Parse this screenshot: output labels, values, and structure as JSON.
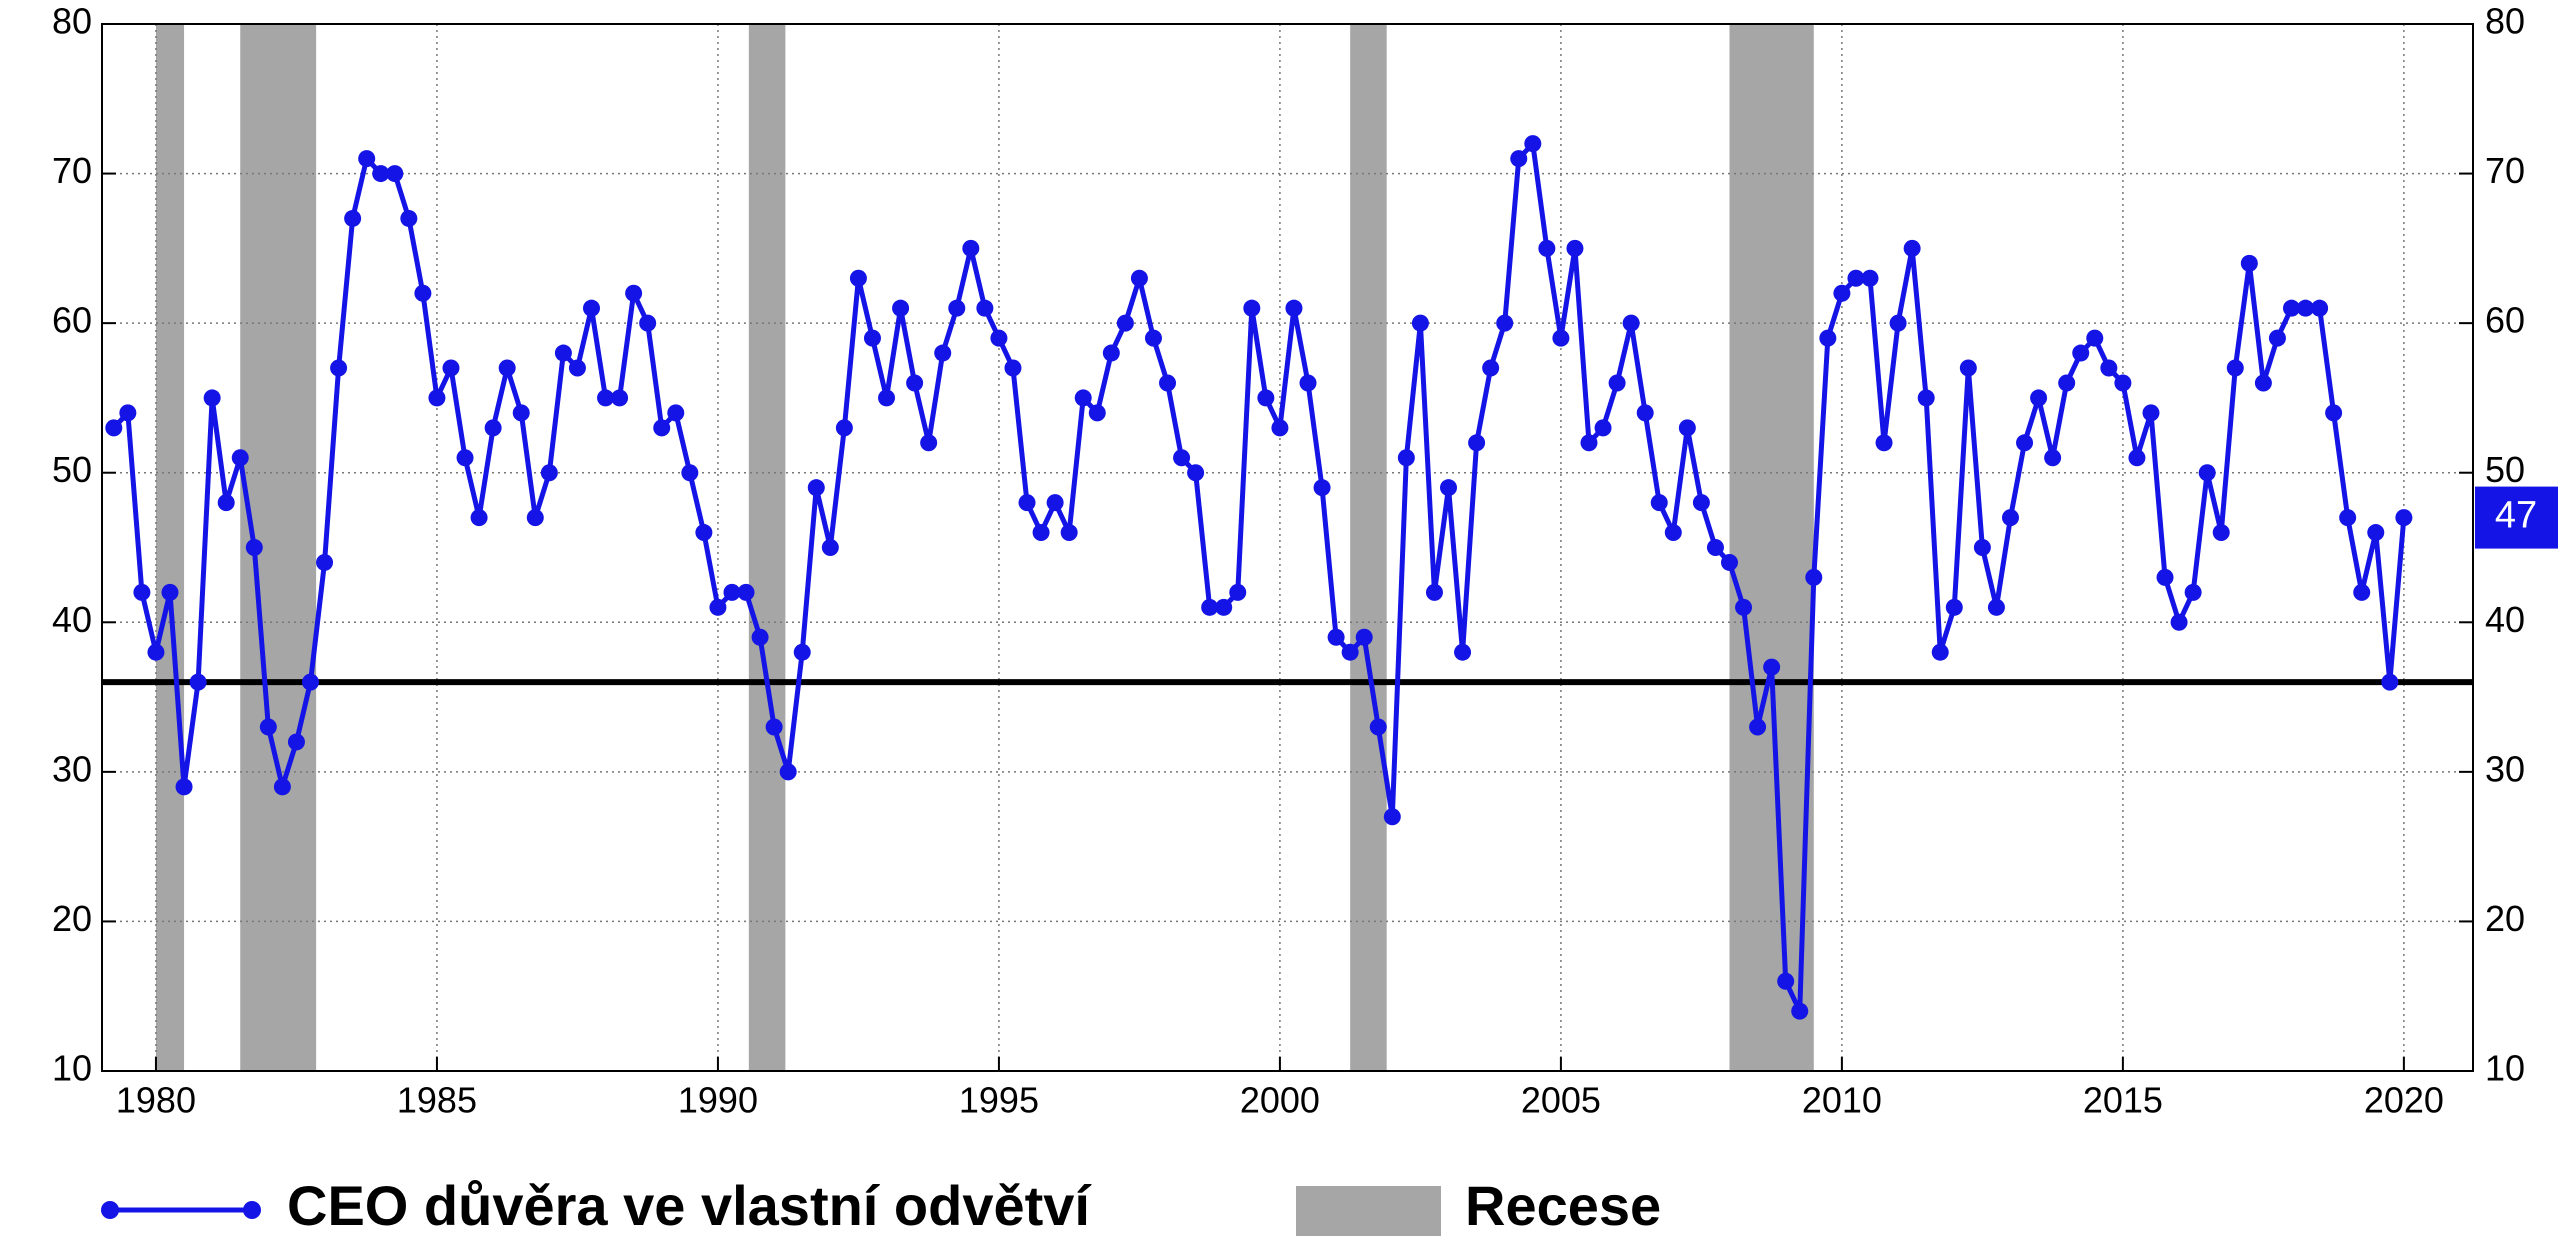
{
  "chart_data": {
    "type": "line",
    "x": [
      1979.25,
      1979.5,
      1979.75,
      1980,
      1980.25,
      1980.5,
      1980.75,
      1981,
      1981.25,
      1981.5,
      1981.75,
      1982,
      1982.25,
      1982.5,
      1982.75,
      1983,
      1983.25,
      1983.5,
      1983.75,
      1984,
      1984.25,
      1984.5,
      1984.75,
      1985,
      1985.25,
      1985.5,
      1985.75,
      1986,
      1986.25,
      1986.5,
      1986.75,
      1987,
      1987.25,
      1987.5,
      1987.75,
      1988,
      1988.25,
      1988.5,
      1988.75,
      1989,
      1989.25,
      1989.5,
      1989.75,
      1990,
      1990.25,
      1990.5,
      1990.75,
      1991,
      1991.25,
      1991.5,
      1991.75,
      1992,
      1992.25,
      1992.5,
      1992.75,
      1993,
      1993.25,
      1993.5,
      1993.75,
      1994,
      1994.25,
      1994.5,
      1994.75,
      1995,
      1995.25,
      1995.5,
      1995.75,
      1996,
      1996.25,
      1996.5,
      1996.75,
      1997,
      1997.25,
      1997.5,
      1997.75,
      1998,
      1998.25,
      1998.5,
      1998.75,
      1999,
      1999.25,
      1999.5,
      1999.75,
      2000,
      2000.25,
      2000.5,
      2000.75,
      2001,
      2001.25,
      2001.5,
      2001.75,
      2002,
      2002.25,
      2002.5,
      2002.75,
      2003,
      2003.25,
      2003.5,
      2003.75,
      2004,
      2004.25,
      2004.5,
      2004.75,
      2005,
      2005.25,
      2005.5,
      2005.75,
      2006,
      2006.25,
      2006.5,
      2006.75,
      2007,
      2007.25,
      2007.5,
      2007.75,
      2008,
      2008.25,
      2008.5,
      2008.75,
      2009,
      2009.25,
      2009.5,
      2009.75,
      2010,
      2010.25,
      2010.5,
      2010.75,
      2011,
      2011.25,
      2011.5,
      2011.75,
      2012,
      2012.25,
      2012.5,
      2012.75,
      2013,
      2013.25,
      2013.5,
      2013.75,
      2014,
      2014.25,
      2014.5,
      2014.75,
      2015,
      2015.25,
      2015.5,
      2015.75,
      2016,
      2016.25,
      2016.5,
      2016.75,
      2017,
      2017.25,
      2017.5,
      2017.75,
      2018,
      2018.25,
      2018.5,
      2018.75,
      2019,
      2019.25,
      2019.5,
      2019.75,
      2020
    ],
    "series": [
      {
        "name": "CEO důvěra ve vlastní odvětví",
        "color": "#1414e6",
        "values": [
          53,
          54,
          42,
          38,
          42,
          29,
          36,
          55,
          48,
          51,
          45,
          33,
          29,
          32,
          36,
          44,
          57,
          67,
          71,
          70,
          70,
          67,
          62,
          55,
          57,
          51,
          47,
          53,
          57,
          54,
          47,
          50,
          58,
          57,
          61,
          55,
          55,
          62,
          60,
          53,
          54,
          50,
          46,
          41,
          42,
          42,
          39,
          33,
          30,
          38,
          49,
          45,
          53,
          63,
          59,
          55,
          61,
          56,
          52,
          58,
          61,
          65,
          61,
          59,
          57,
          48,
          46,
          48,
          46,
          55,
          54,
          58,
          60,
          63,
          59,
          56,
          51,
          50,
          41,
          41,
          42,
          61,
          55,
          53,
          61,
          56,
          49,
          39,
          38,
          39,
          33,
          27,
          51,
          60,
          42,
          49,
          38,
          52,
          57,
          60,
          71,
          72,
          65,
          59,
          65,
          52,
          53,
          56,
          60,
          54,
          48,
          46,
          53,
          48,
          45,
          44,
          41,
          33,
          37,
          16,
          14,
          43,
          59,
          62,
          63,
          63,
          52,
          60,
          65,
          55,
          38,
          41,
          57,
          45,
          41,
          47,
          52,
          55,
          51,
          56,
          58,
          59,
          57,
          56,
          51,
          54,
          43,
          40,
          42,
          50,
          46,
          57,
          64,
          56,
          59,
          61,
          61,
          61,
          54,
          47,
          42,
          46,
          36,
          47
        ]
      }
    ],
    "recession": {
      "name": "Recese",
      "color": "#a6a6a6",
      "spans": [
        [
          1980,
          1980.5
        ],
        [
          1981.5,
          1982.85
        ],
        [
          1990.55,
          1991.2
        ],
        [
          2001.25,
          2001.9
        ],
        [
          2008,
          2009.5
        ]
      ]
    },
    "reference_line": 36,
    "xlim": [
      1979.04,
      2021.23
    ],
    "xticks": [
      1980,
      1985,
      1990,
      1995,
      2000,
      2005,
      2010,
      2015,
      2020
    ],
    "ylim": [
      10,
      80
    ],
    "yticks": [
      10,
      20,
      30,
      40,
      50,
      60,
      70,
      80
    ],
    "y2lim": [
      10,
      80
    ],
    "y2ticks": [
      10,
      20,
      30,
      40,
      50,
      60,
      70,
      80
    ],
    "grid": true,
    "legend": "bottom"
  }
}
